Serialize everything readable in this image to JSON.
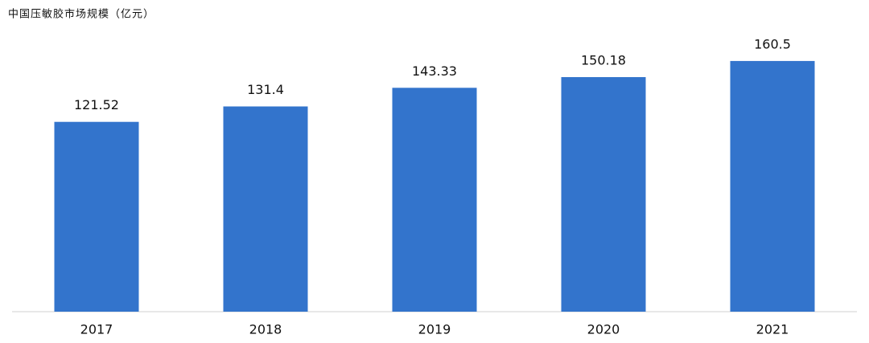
{
  "chart_data": {
    "type": "bar",
    "title": "中国压敏胶市场规模（亿元）",
    "categories": [
      "2017",
      "2018",
      "2019",
      "2020",
      "2021"
    ],
    "values": [
      121.52,
      131.4,
      143.33,
      150.18,
      160.5
    ],
    "color": "#3374cc",
    "ylim": [
      0,
      180
    ]
  }
}
